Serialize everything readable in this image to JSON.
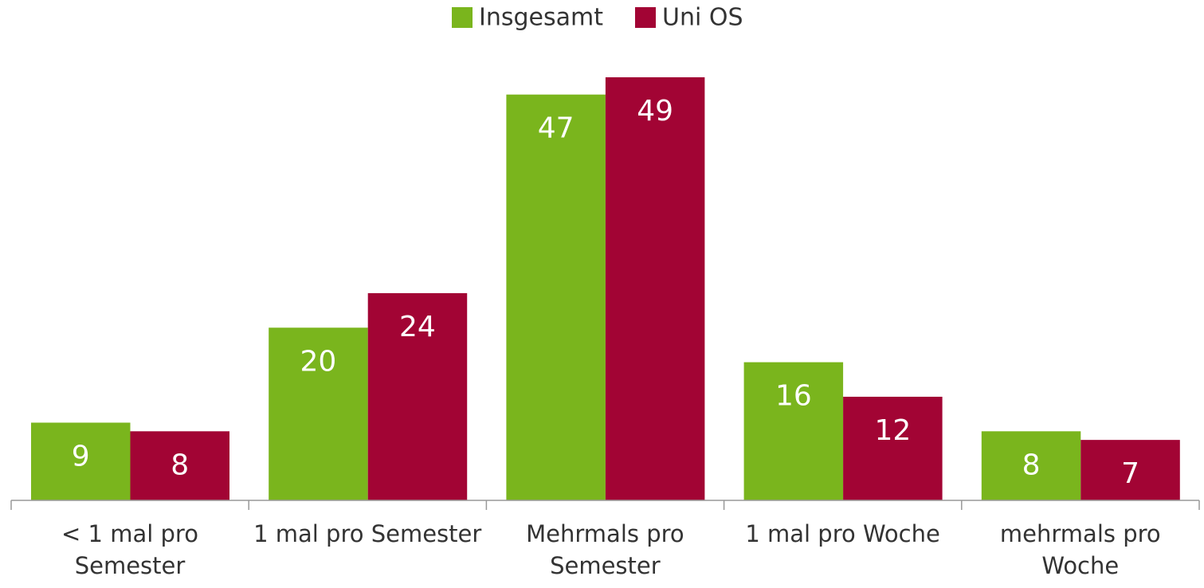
{
  "chart_data": {
    "type": "bar",
    "categories": [
      "< 1 mal pro\nSemester",
      "1 mal pro Semester",
      "Mehrmals pro\nSemester",
      "1 mal pro Woche",
      "mehrmals pro\nWoche"
    ],
    "series": [
      {
        "name": "Insgesamt",
        "color": "#7ab51d",
        "values": [
          9,
          20,
          47,
          16,
          8
        ]
      },
      {
        "name": "Uni OS",
        "color": "#a20434",
        "values": [
          8,
          24,
          49,
          12,
          7
        ]
      }
    ],
    "legend": "top"
  }
}
